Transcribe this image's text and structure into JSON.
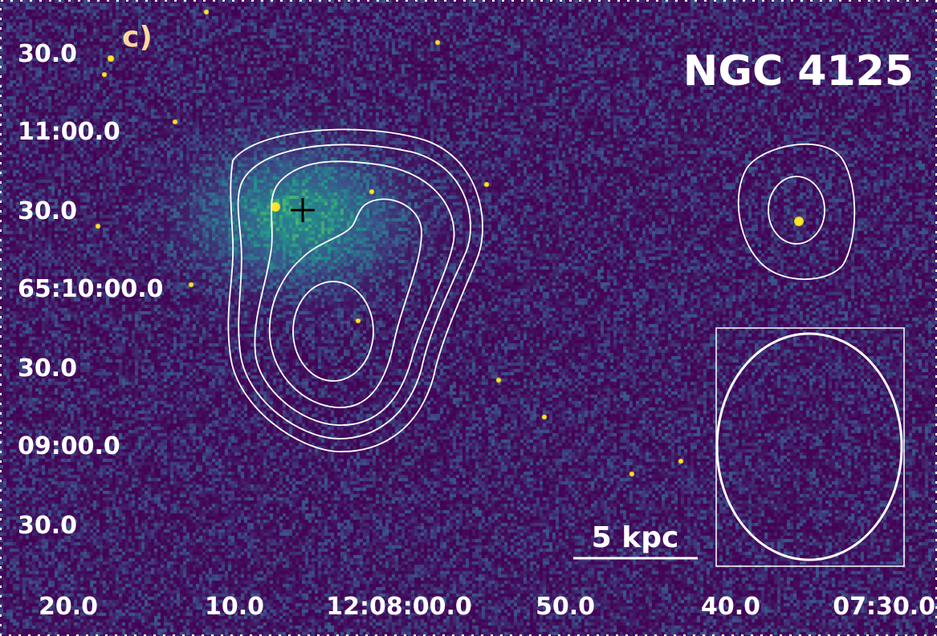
{
  "panel_label": "c)",
  "object_name": "NGC 4125",
  "scale_bar_label": "5 kpc",
  "y_axis": {
    "tick_labels": [
      "30.0",
      "11:00.0",
      "30.0",
      "65:10:00.0",
      "30.0",
      "09:00.0",
      "30.0"
    ]
  },
  "x_axis": {
    "tick_labels": [
      "20.0",
      "10.0",
      "12:08:00.0",
      "50.0",
      "40.0",
      "07:30.0"
    ]
  },
  "colors": {
    "background": "#440154",
    "diffuse_emission": "#2ea387",
    "bright_source": "#fde725",
    "contours": "#ffffff",
    "panel_label": "#ffd8a0",
    "marker": "#000000"
  },
  "marker_symbol": "plus",
  "beam_box": true
}
